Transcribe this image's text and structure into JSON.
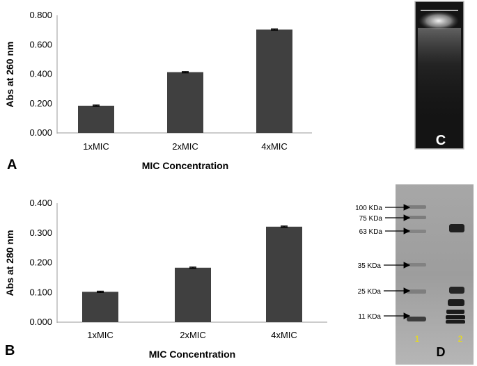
{
  "chart_data": [
    {
      "type": "bar",
      "panel": "A",
      "categories": [
        "1xMIC",
        "2xMIC",
        "4xMIC"
      ],
      "values": [
        0.185,
        0.413,
        0.703
      ],
      "errors": [
        0.004,
        0.004,
        0.004
      ],
      "xlabel": "MIC Concentration",
      "ylabel": "Abs at 260 nm",
      "ylim": [
        0,
        0.8
      ],
      "yticks": [
        "0.000",
        "0.200",
        "0.400",
        "0.600",
        "0.800"
      ],
      "bar_color": "#404040"
    },
    {
      "type": "bar",
      "panel": "B",
      "categories": [
        "1xMIC",
        "2xMIC",
        "4xMIC"
      ],
      "values": [
        0.102,
        0.183,
        0.321
      ],
      "errors": [
        0.002,
        0.002,
        0.002
      ],
      "xlabel": "MIC Concentration",
      "ylabel": "Abs at 280 nm",
      "ylim": [
        0,
        0.4
      ],
      "yticks": [
        "0.000",
        "0.100",
        "0.200",
        "0.300",
        "0.400"
      ],
      "bar_color": "#404040"
    }
  ],
  "gel_c": {
    "label": "C"
  },
  "gel_d": {
    "label": "D",
    "lane_labels": [
      "1",
      "2"
    ],
    "markers": [
      "100 KDa",
      "75 KDa",
      "63 KDa",
      "35 KDa",
      "25 KDa",
      "11 KDa"
    ]
  }
}
